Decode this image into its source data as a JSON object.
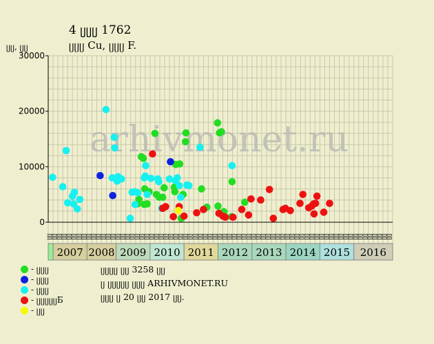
{
  "title": "4 ᥩᥩᥩ 1762",
  "subtitle": "ᥩᥩᥩ Cu, ᥩᥩᥩ F.",
  "y_unit": "ᥩᥩ, ᥩᥩ",
  "watermark": "arhivmonet.ru",
  "info_lines": [
    "ᥩᥩᥩᥩ ᥩᥩ 3258 ᥩᥩ",
    "ᥩ ᥩᥩᥩᥩᥩ ᥩᥩᥩ ARHIVMONET.RU",
    "ᥩᥩᥩ ᥩ 20 ᥩᥩ 2017 ᥩᥩ."
  ],
  "legend": [
    {
      "label": "- ᥩᥩᥩ",
      "color": "#22dd22"
    },
    {
      "label": "- ᥩᥩᥩ",
      "color": "#1020e0"
    },
    {
      "label": "- ᥩᥩᥩ",
      "color": "#18f0f0"
    },
    {
      "label": "- ᥩᥩᥩᥩᥩБ",
      "color": "#ee1111"
    },
    {
      "label": "- ᥩᥩ",
      "color": "#f8f800"
    }
  ],
  "colors": {
    "green": "#22dd22",
    "blue": "#1020e0",
    "cyan": "#18f0f0",
    "red": "#ee1111",
    "yellow": "#f8f800",
    "background": "#efefd0",
    "grid": "#c8c8aa",
    "year_band_first": "#99ee99"
  },
  "chart_data": {
    "type": "scatter",
    "ylim": [
      0,
      30000
    ],
    "y_ticks": [
      "0",
      "10000",
      "20000",
      "30000"
    ],
    "grid": true,
    "month_labels": [
      "ᥩᥩ",
      "ᥩᥩ",
      "ᥩᥩ",
      "ᥩᥩ",
      "ᥩᥩ",
      "ᥩᥩ",
      "ᥩᥩ",
      "ᥩᥩ",
      "ᥩᥩ",
      "ᥩᥩ",
      "ᥩᥩ",
      "ᥩᥩ",
      "ᥩᥩ",
      "ᥩᥩ",
      "ᥩᥩ",
      "ᥩᥩ",
      "ᥩᥩ",
      "ᥩᥩ",
      "ᥩᥩ",
      "ᥩᥩ",
      "ᥩᥩ",
      "ᥩᥩ",
      "ᥩᥩ",
      "ᥩᥩ",
      "ᥩᥩ",
      "ᥩᥩ",
      "ᥩᥩ",
      "ᥩᥩ",
      "ᥩᥩ",
      "ᥩᥩ",
      "ᥩᥩ",
      "ᥩᥩ",
      "ᥩᥩ",
      "ᥩᥩ",
      "ᥩᥩ",
      "ᥩᥩ",
      "ᥩᥩ",
      "ᥩᥩ",
      "ᥩᥩ",
      "ᥩᥩ",
      "ᥩᥩ",
      "ᥩᥩ",
      "ᥩᥩ",
      "ᥩᥩ",
      "ᥩᥩ",
      "ᥩᥩ",
      "ᥩᥩ",
      "ᥩᥩ",
      "ᥩᥩ",
      "ᥩᥩ",
      "ᥩᥩ",
      "ᥩᥩ",
      "ᥩᥩ",
      "ᥩᥩ",
      "ᥩᥩ",
      "ᥩᥩ",
      "ᥩᥩ",
      "ᥩᥩ",
      "ᥩᥩ",
      "ᥩᥩ",
      "ᥩᥩ",
      "ᥩᥩ",
      "ᥩᥩ",
      "ᥩᥩ",
      "ᥩᥩ",
      "ᥩᥩ",
      "ᥩᥩ",
      "ᥩᥩ",
      "ᥩᥩ",
      "ᥩᥩ",
      "ᥩᥩ"
    ],
    "years": [
      {
        "label": "",
        "color": "#99ee99"
      },
      {
        "label": "2007",
        "color": "#d6cf9e"
      },
      {
        "label": "2008",
        "color": "#d6cf9e"
      },
      {
        "label": "2009",
        "color": "#bedbbb"
      },
      {
        "label": "2010",
        "color": "#bfe6d2"
      },
      {
        "label": "2011",
        "color": "#e1d89b"
      },
      {
        "label": "2012",
        "color": "#aad8bc"
      },
      {
        "label": "2013",
        "color": "#aad8bc"
      },
      {
        "label": "2014",
        "color": "#9cd6c2"
      },
      {
        "label": "2015",
        "color": "#aee0dc"
      },
      {
        "label": "2016",
        "color": "#cfcfb8"
      }
    ],
    "series": [
      {
        "color": "green",
        "points": [
          [
            18.7,
            4100
          ],
          [
            19.2,
            11800
          ],
          [
            19.6,
            11500
          ],
          [
            19.9,
            6000
          ],
          [
            19.8,
            3200
          ],
          [
            18.4,
            3300
          ],
          [
            20.8,
            5500
          ],
          [
            20.4,
            3300
          ],
          [
            22.0,
            16000
          ],
          [
            22.3,
            5000
          ],
          [
            22.9,
            4500
          ],
          [
            23.6,
            4500
          ],
          [
            23.9,
            6200
          ],
          [
            26.0,
            6300
          ],
          [
            26.3,
            10400
          ],
          [
            26.1,
            5500
          ],
          [
            27.1,
            10500
          ],
          [
            27.8,
            5000
          ],
          [
            28.3,
            14500
          ],
          [
            28.4,
            16100
          ],
          [
            27.4,
            700
          ],
          [
            31.6,
            6000
          ],
          [
            32.7,
            2700
          ],
          [
            34.9,
            17900
          ],
          [
            35.3,
            16100
          ],
          [
            35.7,
            16300
          ],
          [
            35.0,
            2900
          ],
          [
            36.2,
            1900
          ],
          [
            37.9,
            7300
          ],
          [
            37.8,
            1000
          ],
          [
            40.5,
            3600
          ]
        ]
      },
      {
        "color": "blue",
        "points": [
          [
            10.7,
            8400
          ],
          [
            13.3,
            4800
          ],
          [
            25.2,
            10900
          ]
        ]
      },
      {
        "color": "cyan",
        "points": [
          [
            0.9,
            8100
          ],
          [
            3.0,
            6400
          ],
          [
            4.0,
            3500
          ],
          [
            3.7,
            12900
          ],
          [
            5.0,
            4700
          ],
          [
            5.4,
            5400
          ],
          [
            5.2,
            3300
          ],
          [
            6.0,
            2400
          ],
          [
            6.5,
            4100
          ],
          [
            11.9,
            20300
          ],
          [
            13.2,
            8000
          ],
          [
            13.7,
            13400
          ],
          [
            13.6,
            15300
          ],
          [
            14.4,
            8200
          ],
          [
            14.2,
            7400
          ],
          [
            15.1,
            7800
          ],
          [
            16.9,
            700
          ],
          [
            17.3,
            5400
          ],
          [
            17.9,
            3200
          ],
          [
            17.8,
            5500
          ],
          [
            18.5,
            5300
          ],
          [
            19.8,
            8000
          ],
          [
            20.1,
            10200
          ],
          [
            20.0,
            8300
          ],
          [
            20.4,
            5000
          ],
          [
            21.2,
            7900
          ],
          [
            22.8,
            7300
          ],
          [
            22.6,
            7800
          ],
          [
            23.4,
            2500
          ],
          [
            25.0,
            7800
          ],
          [
            26.2,
            7500
          ],
          [
            26.6,
            8000
          ],
          [
            27.0,
            6600
          ],
          [
            27.3,
            4500
          ],
          [
            28.6,
            6700
          ],
          [
            29.0,
            6600
          ],
          [
            31.3,
            13500
          ],
          [
            37.9,
            10200
          ]
        ]
      },
      {
        "color": "red",
        "points": [
          [
            21.5,
            12300
          ],
          [
            23.6,
            2500
          ],
          [
            24.2,
            2800
          ],
          [
            25.8,
            1000
          ],
          [
            27.0,
            2800
          ],
          [
            28.0,
            1100
          ],
          [
            30.6,
            1700
          ],
          [
            32.0,
            2300
          ],
          [
            35.2,
            1600
          ],
          [
            36.0,
            1100
          ],
          [
            36.5,
            900
          ],
          [
            38.1,
            900
          ],
          [
            39.9,
            2300
          ],
          [
            41.3,
            1300
          ],
          [
            41.8,
            4200
          ],
          [
            43.8,
            4000
          ],
          [
            45.6,
            5900
          ],
          [
            46.4,
            700
          ],
          [
            48.4,
            2300
          ],
          [
            48.9,
            2500
          ],
          [
            49.9,
            2100
          ],
          [
            51.9,
            3400
          ],
          [
            52.5,
            5000
          ],
          [
            53.7,
            2600
          ],
          [
            54.3,
            2900
          ],
          [
            54.7,
            3300
          ],
          [
            54.8,
            1500
          ],
          [
            55.1,
            3400
          ],
          [
            55.4,
            4700
          ],
          [
            56.8,
            1800
          ],
          [
            58.0,
            3400
          ]
        ]
      },
      {
        "color": "yellow",
        "points": [
          [
            26.8,
            2100
          ]
        ]
      }
    ]
  }
}
